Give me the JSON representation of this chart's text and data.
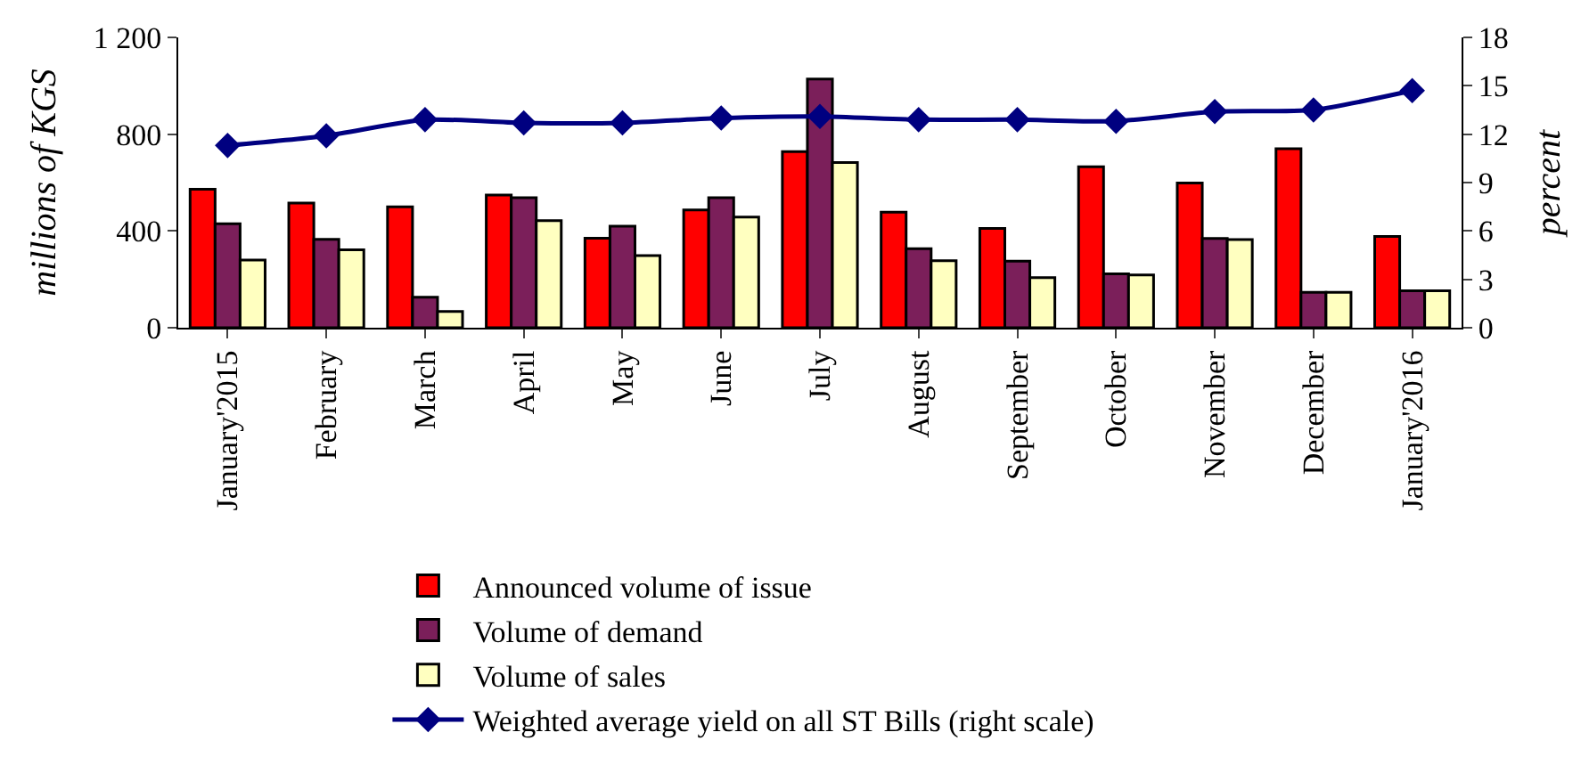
{
  "chart_data": {
    "type": "bar",
    "categories": [
      "January'2015",
      "February",
      "March",
      "April",
      "May",
      "June",
      "July",
      "August",
      "September",
      "October",
      "November",
      "December",
      "January'2016"
    ],
    "ylabel": "millions of KGS",
    "y2label": "percent",
    "ylim": [
      0,
      1200
    ],
    "yticks": [
      0,
      400,
      800,
      {
        "value": 1200,
        "label": "1 200"
      }
    ],
    "y2lim": [
      0,
      18
    ],
    "y2ticks": [
      0,
      3,
      6,
      9,
      12,
      15,
      18
    ],
    "series": [
      {
        "name": "Announced volume of issue",
        "color": "#ff0000",
        "values": [
          572,
          515,
          500,
          548,
          370,
          487,
          728,
          478,
          410,
          665,
          598,
          740,
          377
        ]
      },
      {
        "name": "Volume of demand",
        "color": "#7b1f5a",
        "values": [
          430,
          365,
          126,
          537,
          420,
          537,
          1028,
          327,
          275,
          223,
          369,
          146,
          153
        ]
      },
      {
        "name": "Volume of sales",
        "color": "#ffffc0",
        "values": [
          280,
          322,
          67,
          443,
          298,
          457,
          683,
          277,
          207,
          218,
          364,
          146,
          153
        ]
      },
      {
        "name": "Weighted average yield on all ST Bills (right scale)",
        "type": "line",
        "axis": "y2",
        "color": "#000080",
        "marker": "diamond",
        "values": [
          11.3,
          11.9,
          12.9,
          12.7,
          12.7,
          13.0,
          13.1,
          12.9,
          12.9,
          12.8,
          13.4,
          13.5,
          14.7
        ]
      }
    ],
    "legend": "bottom"
  }
}
